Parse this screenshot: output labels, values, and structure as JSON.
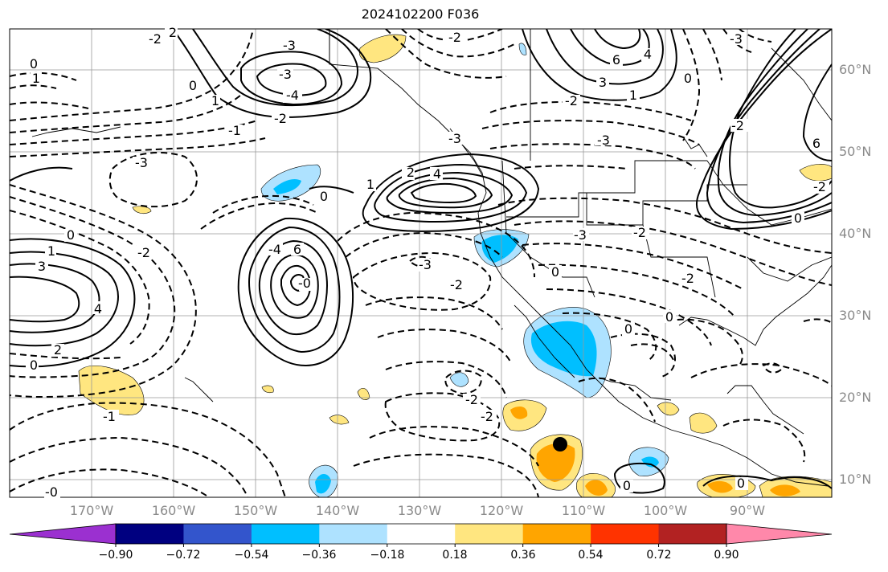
{
  "title": "2024102200 F036",
  "lat_labels": [
    "60°N",
    "50°N",
    "40°N",
    "30°N",
    "20°N",
    "10°N"
  ],
  "lon_labels": [
    "170°W",
    "160°W",
    "150°W",
    "140°W",
    "130°W",
    "120°W",
    "110°W",
    "100°W",
    "90°W"
  ],
  "colorbar": {
    "colors": [
      "#9b30d0",
      "#000080",
      "#3355cc",
      "#00bfff",
      "#aee2ff",
      "#ffffff",
      "#ffe680",
      "#ffa500",
      "#ff3300",
      "#b22222",
      "#ff88aa"
    ],
    "labels": [
      "−0.90",
      "−0.72",
      "−0.54",
      "−0.36",
      "−0.18",
      "0.18",
      "0.36",
      "0.54",
      "0.72",
      "0.90"
    ]
  },
  "contour_labels": {
    "c1": "0",
    "c2": "1",
    "c3": "-2",
    "c4": "-3",
    "c5": "-4",
    "c6": "-3",
    "c7": "-2",
    "c8": "-1",
    "c9": "-2",
    "c10": "2",
    "c11": "-3",
    "c12": "-3",
    "c13": "0",
    "c14": "1",
    "c15": "2",
    "c16": "4",
    "c17": "-2",
    "c18": "-3",
    "c19": "-0",
    "c20": "6",
    "c21": "-4",
    "c22": "-3",
    "c23": "-2",
    "c24": "-2",
    "c25": "-3",
    "c26": "0",
    "c27": "1",
    "c28": "2",
    "c29": "4",
    "c30": "3",
    "c31": "6",
    "c32": "1",
    "c33": "3",
    "c34": "4",
    "c35": "-2",
    "c36": "-3",
    "c37": "-2",
    "c38": "0",
    "c39": "0",
    "c40": "0",
    "c41": "0",
    "c42": "-2",
    "c43": "-2",
    "c44": "-1",
    "c45": "0",
    "c46": "-0",
    "c47": "6",
    "c48": "0",
    "c49": "-2",
    "c50": "-2",
    "c51": "0",
    "c52": "1",
    "c53": "0",
    "c54": "0"
  },
  "marker": {
    "type": "black-dot",
    "color": "#000000"
  }
}
